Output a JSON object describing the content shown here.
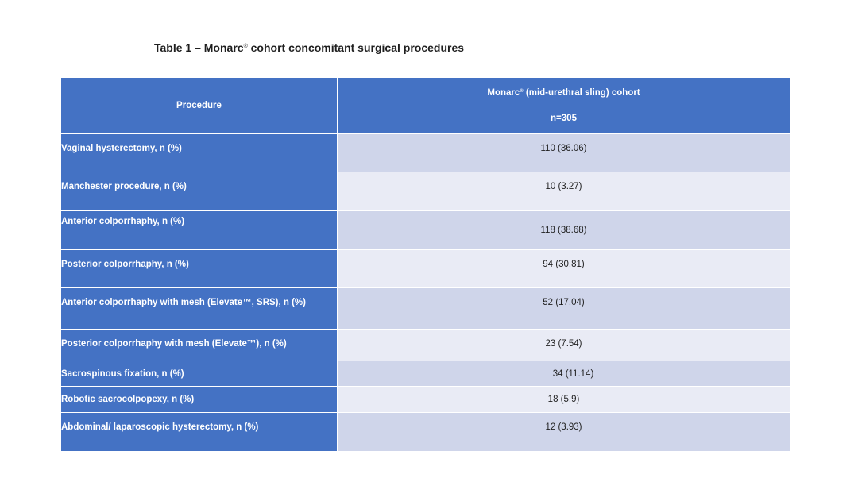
{
  "title": {
    "prefix": "Table 1 – Monarc",
    "mark": "®",
    "suffix": "cohort concomitant surgical procedures"
  },
  "table": {
    "headers": {
      "procedure": "Procedure",
      "cohort_prefix": "Monarc",
      "cohort_mark": "®",
      "cohort_suffix": " (mid-urethral sling) cohort",
      "cohort_n": "n=305"
    },
    "rows": [
      {
        "procedure": "Vaginal hysterectomy, n (%)",
        "value": "110 (36.06)"
      },
      {
        "procedure": "Manchester procedure, n (%)",
        "value": "10 (3.27)"
      },
      {
        "procedure": "Anterior colporrhaphy, n (%)",
        "value": "118 (38.68)"
      },
      {
        "procedure": "Posterior colporrhaphy, n (%)",
        "value": "94 (30.81)"
      },
      {
        "procedure": "Anterior colporrhaphy with mesh (Elevate™, SRS), n (%)",
        "value": "52 (17.04)"
      },
      {
        "procedure": "Posterior colporrhaphy with mesh (Elevate™), n (%)",
        "value": "23 (7.54)"
      },
      {
        "procedure": "Sacrospinous fixation, n (%)",
        "value": "34 (11.14)"
      },
      {
        "procedure": "Robotic sacrocolpopexy, n (%)",
        "value": "18 (5.9)"
      },
      {
        "procedure": "Abdominal/ laparoscopic hysterectomy, n (%)",
        "value": "12 (3.93)"
      }
    ]
  },
  "colors": {
    "header_blue": "#4472c4",
    "row_even": "#cfd5ea",
    "row_odd": "#e9ebf5"
  }
}
